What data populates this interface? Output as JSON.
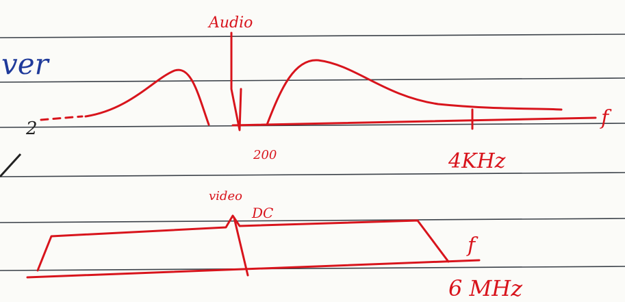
{
  "left_notes": {
    "word": "ver",
    "exponent": "2"
  },
  "top_sketch": {
    "label": "Audio",
    "axis_label": "f",
    "ticks": [
      "200",
      "4KHz"
    ]
  },
  "bottom_sketch": {
    "label": "video",
    "sublabel": "DC",
    "axis_label": "f",
    "tick": "6 MHz"
  }
}
